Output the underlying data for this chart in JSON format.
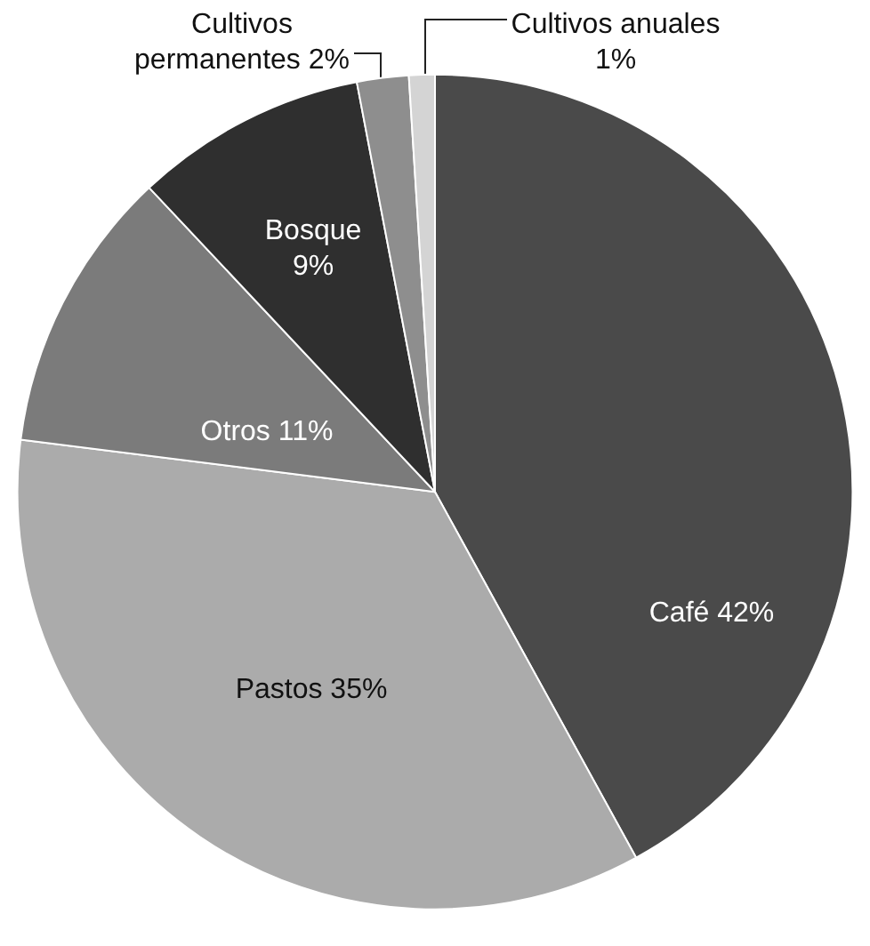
{
  "chart_data": {
    "type": "pie",
    "categories": [
      "Café",
      "Pastos",
      "Otros",
      "Bosque",
      "Cultivos permanentes",
      "Cultivos anuales"
    ],
    "values": [
      42,
      35,
      11,
      9,
      2,
      1
    ],
    "value_labels": [
      "42%",
      "35%",
      "11%",
      "9%",
      "2%",
      "1%"
    ],
    "colors": [
      "#4a4a4a",
      "#ababab",
      "#7b7b7b",
      "#2f2f2f",
      "#8e8e8e",
      "#d4d4d4"
    ]
  }
}
